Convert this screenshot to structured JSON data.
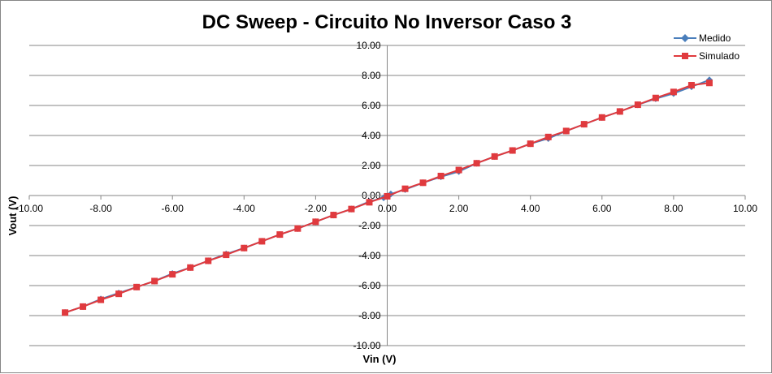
{
  "chart_data": {
    "type": "line",
    "title": "DC Sweep - Circuito No Inversor Caso 3",
    "xlabel": "Vin (V)",
    "ylabel": "Vout (V)",
    "xlim": [
      -10,
      10
    ],
    "ylim": [
      -10,
      10
    ],
    "x_ticks": [
      "-10.00",
      "-8.00",
      "-6.00",
      "-4.00",
      "-2.00",
      "0.00",
      "2.00",
      "4.00",
      "6.00",
      "8.00",
      "10.00"
    ],
    "y_ticks": [
      "10.00",
      "8.00",
      "6.00",
      "4.00",
      "2.00",
      "0.00",
      "-2.00",
      "-4.00",
      "-6.00",
      "-8.00",
      "-10.00"
    ],
    "grid": "horizontal",
    "legend_position": "top-right",
    "series": [
      {
        "name": "Medido",
        "color": "#4a7ebb",
        "marker": "diamond",
        "points": [
          [
            -9.0,
            -7.8
          ],
          [
            -8.5,
            -7.4
          ],
          [
            -8.0,
            -6.9
          ],
          [
            -7.5,
            -6.5
          ],
          [
            -7.0,
            -6.1
          ],
          [
            -6.5,
            -5.7
          ],
          [
            -6.0,
            -5.2
          ],
          [
            -5.5,
            -4.8
          ],
          [
            -5.0,
            -4.35
          ],
          [
            -4.5,
            -3.9
          ],
          [
            -4.0,
            -3.5
          ],
          [
            -3.5,
            -3.05
          ],
          [
            -3.0,
            -2.6
          ],
          [
            -2.5,
            -2.2
          ],
          [
            -2.0,
            -1.75
          ],
          [
            -1.5,
            -1.3
          ],
          [
            -1.0,
            -0.9
          ],
          [
            -0.5,
            -0.4
          ],
          [
            -0.1,
            -0.15
          ],
          [
            0.0,
            -0.05
          ],
          [
            0.1,
            0.1
          ],
          [
            0.5,
            0.4
          ],
          [
            1.0,
            0.85
          ],
          [
            1.5,
            1.25
          ],
          [
            2.0,
            1.6
          ],
          [
            2.5,
            2.15
          ],
          [
            3.0,
            2.6
          ],
          [
            3.5,
            3.0
          ],
          [
            4.0,
            3.45
          ],
          [
            4.5,
            3.8
          ],
          [
            5.0,
            4.3
          ],
          [
            5.5,
            4.75
          ],
          [
            6.0,
            5.2
          ],
          [
            6.5,
            5.6
          ],
          [
            7.0,
            6.05
          ],
          [
            7.5,
            6.45
          ],
          [
            8.0,
            6.8
          ],
          [
            8.5,
            7.25
          ],
          [
            9.0,
            7.7
          ]
        ]
      },
      {
        "name": "Simulado",
        "color": "#e03a3e",
        "marker": "square",
        "points": [
          [
            -9.0,
            -7.8
          ],
          [
            -8.5,
            -7.4
          ],
          [
            -8.0,
            -6.95
          ],
          [
            -7.5,
            -6.55
          ],
          [
            -7.0,
            -6.1
          ],
          [
            -6.5,
            -5.7
          ],
          [
            -6.0,
            -5.25
          ],
          [
            -5.5,
            -4.8
          ],
          [
            -5.0,
            -4.35
          ],
          [
            -4.5,
            -3.95
          ],
          [
            -4.0,
            -3.5
          ],
          [
            -3.5,
            -3.05
          ],
          [
            -3.0,
            -2.6
          ],
          [
            -2.5,
            -2.2
          ],
          [
            -2.0,
            -1.75
          ],
          [
            -1.5,
            -1.3
          ],
          [
            -1.0,
            -0.9
          ],
          [
            -0.5,
            -0.45
          ],
          [
            0.0,
            -0.05
          ],
          [
            0.5,
            0.45
          ],
          [
            1.0,
            0.85
          ],
          [
            1.5,
            1.3
          ],
          [
            2.0,
            1.7
          ],
          [
            2.5,
            2.15
          ],
          [
            3.0,
            2.6
          ],
          [
            3.5,
            3.0
          ],
          [
            4.0,
            3.45
          ],
          [
            4.5,
            3.9
          ],
          [
            5.0,
            4.3
          ],
          [
            5.5,
            4.75
          ],
          [
            6.0,
            5.2
          ],
          [
            6.5,
            5.6
          ],
          [
            7.0,
            6.05
          ],
          [
            7.5,
            6.5
          ],
          [
            8.0,
            6.9
          ],
          [
            8.5,
            7.35
          ],
          [
            9.0,
            7.5
          ]
        ]
      }
    ]
  }
}
